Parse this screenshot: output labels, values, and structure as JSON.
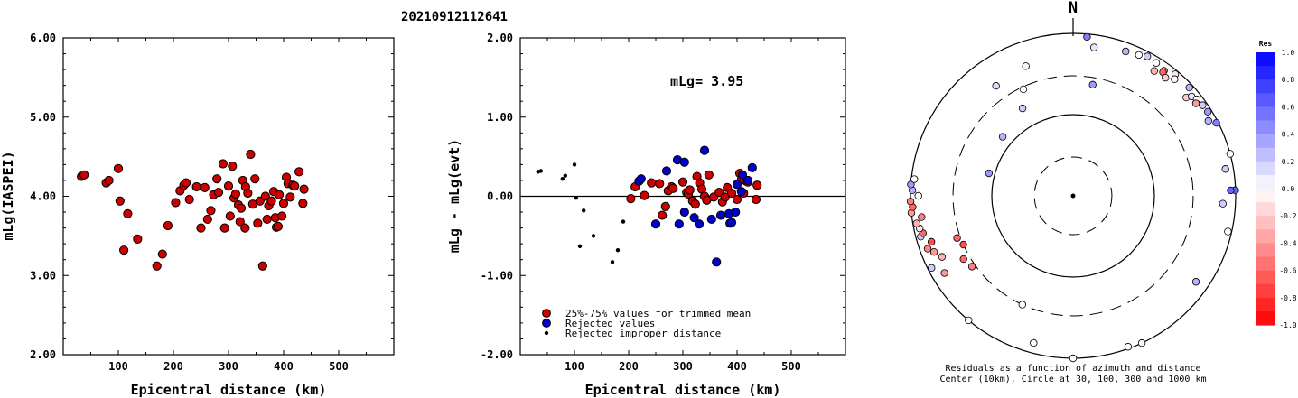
{
  "title": "20210912112641",
  "chart_data": [
    {
      "type": "scatter",
      "name": "mlg-vs-distance",
      "xlabel": "Epicentral distance (km)",
      "ylabel": "mLg(IASPEI)",
      "xlim": [
        0,
        600
      ],
      "ylim": [
        2.0,
        6.0
      ],
      "x_ticks": [
        "100",
        "200",
        "300",
        "400",
        "500"
      ],
      "y_ticks": [
        "2.00",
        "3.00",
        "4.00",
        "5.00",
        "6.00"
      ],
      "grid": false,
      "series": [
        {
          "color": "#cc0000",
          "points": [
            [
              33,
              4.25
            ],
            [
              38,
              4.27
            ],
            [
              78,
              4.17
            ],
            [
              83,
              4.2
            ],
            [
              100,
              4.35
            ],
            [
              103,
              3.94
            ],
            [
              110,
              3.32
            ],
            [
              117,
              3.78
            ],
            [
              135,
              3.46
            ],
            [
              170,
              3.12
            ],
            [
              180,
              3.27
            ],
            [
              190,
              3.63
            ],
            [
              204,
              3.92
            ],
            [
              212,
              4.07
            ],
            [
              219,
              4.14
            ],
            [
              223,
              4.17
            ],
            [
              229,
              3.96
            ],
            [
              242,
              4.12
            ],
            [
              250,
              3.6
            ],
            [
              257,
              4.11
            ],
            [
              262,
              3.71
            ],
            [
              268,
              3.82
            ],
            [
              273,
              4.02
            ],
            [
              279,
              4.22
            ],
            [
              282,
              4.05
            ],
            [
              290,
              4.41
            ],
            [
              293,
              3.6
            ],
            [
              300,
              4.13
            ],
            [
              303,
              3.75
            ],
            [
              307,
              4.38
            ],
            [
              310,
              3.98
            ],
            [
              313,
              4.03
            ],
            [
              318,
              3.89
            ],
            [
              321,
              3.68
            ],
            [
              323,
              3.85
            ],
            [
              326,
              4.2
            ],
            [
              330,
              3.6
            ],
            [
              331,
              4.12
            ],
            [
              335,
              4.04
            ],
            [
              340,
              4.53
            ],
            [
              344,
              3.9
            ],
            [
              348,
              4.22
            ],
            [
              353,
              3.66
            ],
            [
              357,
              3.94
            ],
            [
              362,
              3.12
            ],
            [
              367,
              4.0
            ],
            [
              370,
              3.71
            ],
            [
              373,
              3.88
            ],
            [
              378,
              3.94
            ],
            [
              382,
              4.06
            ],
            [
              385,
              3.73
            ],
            [
              387,
              3.61
            ],
            [
              390,
              3.62
            ],
            [
              392,
              4.02
            ],
            [
              397,
              3.75
            ],
            [
              400,
              3.91
            ],
            [
              405,
              4.24
            ],
            [
              408,
              4.16
            ],
            [
              412,
              3.99
            ],
            [
              417,
              4.14
            ],
            [
              420,
              4.13
            ],
            [
              428,
              4.31
            ],
            [
              435,
              3.91
            ],
            [
              437,
              4.09
            ]
          ]
        }
      ]
    },
    {
      "type": "scatter",
      "name": "residual-vs-distance",
      "xlabel": "Epicentral distance (km)",
      "ylabel": "mLg - mLg(evt)",
      "annotation": "mLg= 3.95",
      "xlim": [
        0,
        600
      ],
      "ylim": [
        -2.0,
        2.0
      ],
      "x_ticks": [
        "100",
        "200",
        "300",
        "400",
        "500"
      ],
      "y_ticks": [
        "-2.00",
        "-1.00",
        "0.00",
        "1.00",
        "2.00"
      ],
      "zero_line": true,
      "grid": false,
      "legend": {
        "position": "bottom-left",
        "items": [
          {
            "label": "25%-75% values for trimmed mean",
            "color": "#cc0000",
            "marker": "large"
          },
          {
            "label": "Rejected values",
            "color": "#0000cc",
            "marker": "large"
          },
          {
            "label": "Rejected improper distance",
            "color": "#000000",
            "marker": "small"
          }
        ]
      },
      "series": [
        {
          "label": "25%-75% values for trimmed mean",
          "color": "#cc0000",
          "points": [
            [
              204,
              -0.03
            ],
            [
              212,
              0.12
            ],
            [
              229,
              0.01
            ],
            [
              242,
              0.17
            ],
            [
              257,
              0.16
            ],
            [
              262,
              -0.24
            ],
            [
              268,
              -0.13
            ],
            [
              273,
              0.07
            ],
            [
              279,
              0.12
            ],
            [
              282,
              0.1
            ],
            [
              300,
              0.18
            ],
            [
              307,
              0.05
            ],
            [
              310,
              0.03
            ],
            [
              313,
              0.08
            ],
            [
              318,
              -0.06
            ],
            [
              323,
              -0.1
            ],
            [
              326,
              0.25
            ],
            [
              331,
              0.17
            ],
            [
              335,
              0.09
            ],
            [
              340,
              0.0
            ],
            [
              344,
              -0.05
            ],
            [
              348,
              0.27
            ],
            [
              357,
              -0.01
            ],
            [
              367,
              0.05
            ],
            [
              373,
              -0.07
            ],
            [
              378,
              -0.01
            ],
            [
              382,
              0.11
            ],
            [
              390,
              0.04
            ],
            [
              400,
              -0.04
            ],
            [
              405,
              0.29
            ],
            [
              408,
              0.21
            ],
            [
              412,
              0.04
            ],
            [
              417,
              0.19
            ],
            [
              420,
              0.18
            ],
            [
              435,
              -0.04
            ],
            [
              437,
              0.14
            ]
          ]
        },
        {
          "label": "Rejected values",
          "color": "#0000cc",
          "points": [
            [
              219,
              0.19
            ],
            [
              223,
              0.22
            ],
            [
              250,
              -0.35
            ],
            [
              270,
              0.32
            ],
            [
              290,
              0.46
            ],
            [
              293,
              -0.35
            ],
            [
              303,
              -0.2
            ],
            [
              303,
              0.43
            ],
            [
              321,
              -0.27
            ],
            [
              330,
              -0.35
            ],
            [
              340,
              0.58
            ],
            [
              353,
              -0.29
            ],
            [
              362,
              -0.83
            ],
            [
              370,
              -0.24
            ],
            [
              385,
              -0.22
            ],
            [
              387,
              -0.34
            ],
            [
              390,
              -0.33
            ],
            [
              397,
              -0.2
            ],
            [
              400,
              0.15
            ],
            [
              408,
              0.06
            ],
            [
              410,
              0.27
            ],
            [
              420,
              0.2
            ],
            [
              428,
              0.36
            ]
          ]
        },
        {
          "label": "Rejected improper distance",
          "color": "#000000",
          "points": [
            [
              33,
              0.31
            ],
            [
              38,
              0.32
            ],
            [
              78,
              0.22
            ],
            [
              83,
              0.26
            ],
            [
              100,
              0.4
            ],
            [
              103,
              -0.02
            ],
            [
              110,
              -0.63
            ],
            [
              117,
              -0.18
            ],
            [
              135,
              -0.5
            ],
            [
              170,
              -0.83
            ],
            [
              180,
              -0.68
            ],
            [
              190,
              -0.32
            ]
          ]
        }
      ]
    },
    {
      "type": "polar-scatter",
      "name": "residual-azimuth-distance",
      "north_label": "N",
      "caption_line1": "Residuals as a function of azimuth and distance",
      "caption_line2": "Center (10km), Circle at 30, 100, 300 and 1000 km",
      "rings_km": [
        30,
        100,
        300,
        1000
      ],
      "colorbar": {
        "title": "Res",
        "range": [
          -1.0,
          1.0
        ],
        "tick_labels": [
          "1.0",
          "0.8",
          "0.6",
          "0.4",
          "0.2",
          "0.0",
          "-0.2",
          "-0.4",
          "-0.6",
          "-0.8",
          "-1.0"
        ],
        "positive_color": "#0000ff",
        "negative_color": "#ff0000"
      },
      "points": [
        {
          "az": 330,
          "dist": 175,
          "res": 0.2
        },
        {
          "az": 310,
          "dist": 135,
          "res": 0.3
        },
        {
          "az": 285,
          "dist": 118,
          "res": 0.4
        },
        {
          "az": 335,
          "dist": 280,
          "res": 0.0
        },
        {
          "az": 325,
          "dist": 450,
          "res": 0.15
        },
        {
          "az": 340,
          "dist": 500,
          "res": -0.05
        },
        {
          "az": 10,
          "dist": 245,
          "res": 0.4
        },
        {
          "az": 5,
          "dist": 920,
          "res": 0.5
        },
        {
          "az": 8,
          "dist": 700,
          "res": 0.1
        },
        {
          "az": 20,
          "dist": 780,
          "res": 0.3
        },
        {
          "az": 25,
          "dist": 820,
          "res": 0.0
        },
        {
          "az": 28,
          "dist": 880,
          "res": 0.2
        },
        {
          "az": 32,
          "dist": 850,
          "res": 0.0
        },
        {
          "az": 36,
          "dist": 800,
          "res": -0.4
        },
        {
          "az": 33,
          "dist": 680,
          "res": -0.3
        },
        {
          "az": 36,
          "dist": 760,
          "res": -0.6
        },
        {
          "az": 38,
          "dist": 700,
          "res": -0.2
        },
        {
          "az": 40,
          "dist": 900,
          "res": -0.1
        },
        {
          "az": 41,
          "dist": 800,
          "res": 0.0
        },
        {
          "az": 47,
          "dist": 900,
          "res": 0.3
        },
        {
          "az": 49,
          "dist": 700,
          "res": -0.2
        },
        {
          "az": 50,
          "dist": 800,
          "res": 0.1
        },
        {
          "az": 52,
          "dist": 850,
          "res": 0.0
        },
        {
          "az": 53,
          "dist": 780,
          "res": -0.4
        },
        {
          "az": 55,
          "dist": 880,
          "res": 0.2
        },
        {
          "az": 58,
          "dist": 900,
          "res": 0.4
        },
        {
          "az": 61,
          "dist": 800,
          "res": 0.3
        },
        {
          "az": 63,
          "dist": 950,
          "res": 0.5
        },
        {
          "az": 75,
          "dist": 1000,
          "res": 0.0
        },
        {
          "az": 80,
          "dist": 800,
          "res": 0.2
        },
        {
          "az": 88,
          "dist": 990,
          "res": 0.6
        },
        {
          "az": 88,
          "dist": 870,
          "res": 0.6
        },
        {
          "az": 93,
          "dist": 700,
          "res": 0.2
        },
        {
          "az": 103,
          "dist": 900,
          "res": 0.0
        },
        {
          "az": 125,
          "dist": 700,
          "res": 0.3
        },
        {
          "az": 155,
          "dist": 1000,
          "res": 0.0
        },
        {
          "az": 160,
          "dist": 950,
          "res": 0.0
        },
        {
          "az": 180,
          "dist": 1000,
          "res": 0.0
        },
        {
          "az": 195,
          "dist": 750,
          "res": 0.0
        },
        {
          "az": 205,
          "dist": 300,
          "res": 0.0
        },
        {
          "az": 220,
          "dist": 1000,
          "res": 0.0
        },
        {
          "az": 235,
          "dist": 330,
          "res": -0.5
        },
        {
          "az": 240,
          "dist": 360,
          "res": -0.6
        },
        {
          "az": 243,
          "dist": 900,
          "res": 0.2
        },
        {
          "az": 245,
          "dist": 600,
          "res": -0.3
        },
        {
          "az": 248,
          "dist": 700,
          "res": -0.4
        },
        {
          "az": 250,
          "dist": 800,
          "res": -0.5
        },
        {
          "az": 252,
          "dist": 680,
          "res": -0.7
        },
        {
          "az": 255,
          "dist": 870,
          "res": 0.2
        },
        {
          "az": 256,
          "dist": 800,
          "res": -0.6
        },
        {
          "az": 258,
          "dist": 850,
          "res": -0.1
        },
        {
          "az": 260,
          "dist": 900,
          "res": -0.3
        },
        {
          "az": 262,
          "dist": 760,
          "res": -0.5
        },
        {
          "az": 264,
          "dist": 1000,
          "res": -0.4
        },
        {
          "az": 266,
          "dist": 950,
          "res": -0.6
        },
        {
          "az": 268,
          "dist": 1000,
          "res": -0.5
        },
        {
          "az": 270,
          "dist": 800,
          "res": 0.0
        },
        {
          "az": 272,
          "dist": 950,
          "res": 0.3
        },
        {
          "az": 274,
          "dist": 1000,
          "res": 0.4
        },
        {
          "az": 276,
          "dist": 920,
          "res": 0.0
        },
        {
          "az": 246,
          "dist": 300,
          "res": -0.7
        },
        {
          "az": 250,
          "dist": 330,
          "res": -0.6
        },
        {
          "az": 239,
          "dist": 700,
          "res": -0.4
        }
      ]
    }
  ]
}
